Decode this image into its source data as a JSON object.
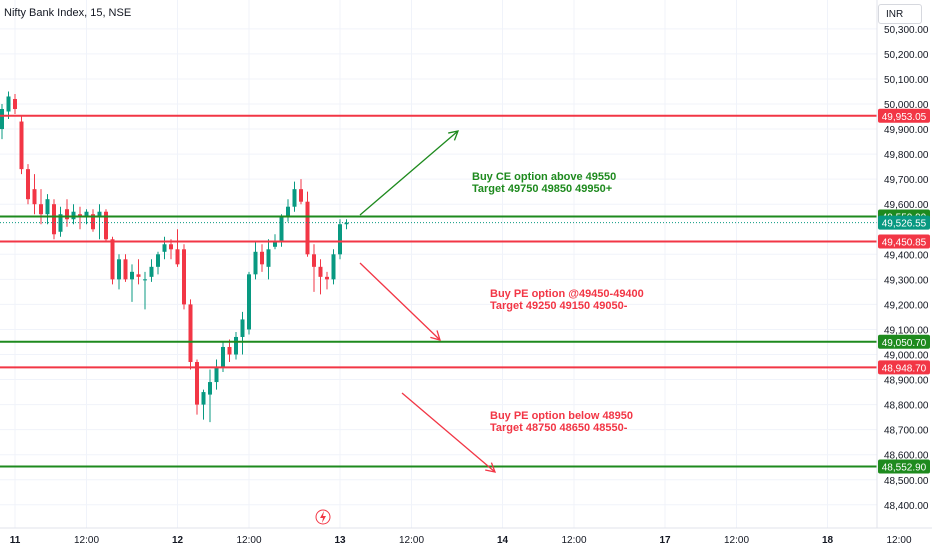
{
  "header": {
    "title": "Nifty Bank Index, 15, NSE",
    "currency": "INR"
  },
  "colors": {
    "up": "#089981",
    "down": "#f23645",
    "green_line": "#1e8a1e",
    "red_line": "#f23645",
    "grid": "#f0f3fa",
    "text": "#131722"
  },
  "chart_data": {
    "type": "candlestick",
    "title": "Nifty Bank Index, 15, NSE",
    "ylim": [
      48350,
      50350
    ],
    "y_ticks": [
      {
        "value": 50300,
        "label": "50,300.00"
      },
      {
        "value": 50200,
        "label": "50,200.00"
      },
      {
        "value": 50100,
        "label": "50,100.00"
      },
      {
        "value": 50000,
        "label": "50,000.00"
      },
      {
        "value": 49900,
        "label": "49,900.00"
      },
      {
        "value": 49800,
        "label": "49,800.00"
      },
      {
        "value": 49700,
        "label": "49,700.00"
      },
      {
        "value": 49600,
        "label": "49,600.00"
      },
      {
        "value": 49400,
        "label": "49,400.00"
      },
      {
        "value": 49300,
        "label": "49,300.00"
      },
      {
        "value": 49200,
        "label": "49,200.00"
      },
      {
        "value": 49100,
        "label": "49,100.00"
      },
      {
        "value": 49000,
        "label": "49,000.00"
      },
      {
        "value": 48900,
        "label": "48,900.00"
      },
      {
        "value": 48800,
        "label": "48,800.00"
      },
      {
        "value": 48700,
        "label": "48,700.00"
      },
      {
        "value": 48600,
        "label": "48,600.00"
      },
      {
        "value": 48500,
        "label": "48,500.00"
      },
      {
        "value": 48400,
        "label": "48,400.00"
      }
    ],
    "x_ticks": [
      {
        "index": 2,
        "label": "11"
      },
      {
        "index": 13,
        "label": "12:00"
      },
      {
        "index": 27,
        "label": "12"
      },
      {
        "index": 38,
        "label": "12:00"
      },
      {
        "index": 52,
        "label": "13"
      },
      {
        "index": 63,
        "label": "12:00"
      },
      {
        "index": 77,
        "label": "14"
      },
      {
        "index": 88,
        "label": "12:00"
      },
      {
        "index": 102,
        "label": "17"
      },
      {
        "index": 113,
        "label": "12:00"
      },
      {
        "index": 127,
        "label": "18"
      },
      {
        "index": 138,
        "label": "12:00"
      }
    ],
    "candles": [
      {
        "o": 49900,
        "h": 50000,
        "l": 49860,
        "c": 49980
      },
      {
        "o": 49970,
        "h": 50050,
        "l": 49940,
        "c": 50030
      },
      {
        "o": 50020,
        "h": 50040,
        "l": 49960,
        "c": 49980
      },
      {
        "o": 49930,
        "h": 49950,
        "l": 49720,
        "c": 49740
      },
      {
        "o": 49740,
        "h": 49760,
        "l": 49600,
        "c": 49620
      },
      {
        "o": 49660,
        "h": 49720,
        "l": 49560,
        "c": 49600
      },
      {
        "o": 49600,
        "h": 49660,
        "l": 49520,
        "c": 49560
      },
      {
        "o": 49560,
        "h": 49640,
        "l": 49520,
        "c": 49620
      },
      {
        "o": 49600,
        "h": 49620,
        "l": 49460,
        "c": 49480
      },
      {
        "o": 49490,
        "h": 49590,
        "l": 49470,
        "c": 49560
      },
      {
        "o": 49580,
        "h": 49620,
        "l": 49510,
        "c": 49540
      },
      {
        "o": 49540,
        "h": 49600,
        "l": 49520,
        "c": 49570
      },
      {
        "o": 49560,
        "h": 49590,
        "l": 49500,
        "c": 49550
      },
      {
        "o": 49550,
        "h": 49580,
        "l": 49520,
        "c": 49570
      },
      {
        "o": 49560,
        "h": 49580,
        "l": 49490,
        "c": 49500
      },
      {
        "o": 49550,
        "h": 49600,
        "l": 49460,
        "c": 49570
      },
      {
        "o": 49570,
        "h": 49580,
        "l": 49450,
        "c": 49460
      },
      {
        "o": 49460,
        "h": 49470,
        "l": 49280,
        "c": 49300
      },
      {
        "o": 49300,
        "h": 49400,
        "l": 49260,
        "c": 49380
      },
      {
        "o": 49380,
        "h": 49400,
        "l": 49290,
        "c": 49300
      },
      {
        "o": 49300,
        "h": 49360,
        "l": 49210,
        "c": 49330
      },
      {
        "o": 49320,
        "h": 49380,
        "l": 49280,
        "c": 49310
      },
      {
        "o": 49300,
        "h": 49330,
        "l": 49180,
        "c": 49300
      },
      {
        "o": 49310,
        "h": 49380,
        "l": 49290,
        "c": 49350
      },
      {
        "o": 49350,
        "h": 49410,
        "l": 49320,
        "c": 49400
      },
      {
        "o": 49410,
        "h": 49470,
        "l": 49380,
        "c": 49440
      },
      {
        "o": 49440,
        "h": 49460,
        "l": 49380,
        "c": 49420
      },
      {
        "o": 49420,
        "h": 49500,
        "l": 49350,
        "c": 49360
      },
      {
        "o": 49420,
        "h": 49440,
        "l": 49180,
        "c": 49200
      },
      {
        "o": 49200,
        "h": 49220,
        "l": 48940,
        "c": 48970
      },
      {
        "o": 48970,
        "h": 48980,
        "l": 48760,
        "c": 48800
      },
      {
        "o": 48800,
        "h": 48860,
        "l": 48740,
        "c": 48850
      },
      {
        "o": 48840,
        "h": 48940,
        "l": 48730,
        "c": 48890
      },
      {
        "o": 48890,
        "h": 48980,
        "l": 48860,
        "c": 48950
      },
      {
        "o": 48950,
        "h": 49050,
        "l": 48930,
        "c": 49030
      },
      {
        "o": 49030,
        "h": 49060,
        "l": 48970,
        "c": 49000
      },
      {
        "o": 49000,
        "h": 49090,
        "l": 48980,
        "c": 49070
      },
      {
        "o": 49070,
        "h": 49170,
        "l": 49000,
        "c": 49140
      },
      {
        "o": 49100,
        "h": 49330,
        "l": 49080,
        "c": 49320
      },
      {
        "o": 49320,
        "h": 49450,
        "l": 49300,
        "c": 49410
      },
      {
        "o": 49410,
        "h": 49440,
        "l": 49330,
        "c": 49360
      },
      {
        "o": 49350,
        "h": 49460,
        "l": 49300,
        "c": 49420
      },
      {
        "o": 49430,
        "h": 49480,
        "l": 49420,
        "c": 49450
      },
      {
        "o": 49450,
        "h": 49560,
        "l": 49430,
        "c": 49550
      },
      {
        "o": 49550,
        "h": 49620,
        "l": 49530,
        "c": 49590
      },
      {
        "o": 49590,
        "h": 49690,
        "l": 49570,
        "c": 49660
      },
      {
        "o": 49660,
        "h": 49700,
        "l": 49600,
        "c": 49610
      },
      {
        "o": 49610,
        "h": 49650,
        "l": 49390,
        "c": 49400
      },
      {
        "o": 49400,
        "h": 49440,
        "l": 49250,
        "c": 49350
      },
      {
        "o": 49350,
        "h": 49380,
        "l": 49240,
        "c": 49310
      },
      {
        "o": 49310,
        "h": 49330,
        "l": 49260,
        "c": 49300
      },
      {
        "o": 49300,
        "h": 49420,
        "l": 49280,
        "c": 49400
      },
      {
        "o": 49400,
        "h": 49540,
        "l": 49380,
        "c": 49520
      },
      {
        "o": 49520,
        "h": 49540,
        "l": 49500,
        "c": 49526
      }
    ],
    "horizontal_levels": [
      {
        "value": 49953.05,
        "label": "49,953.05",
        "color": "#f23645"
      },
      {
        "value": 49550.9,
        "label": "49,550.90",
        "color": "#1e8a1e"
      },
      {
        "value": 49526.55,
        "label": "49,526.55",
        "color": "#089981",
        "dotted": true
      },
      {
        "value": 49450.85,
        "label": "49,450.85",
        "color": "#f23645"
      },
      {
        "value": 49050.7,
        "label": "49,050.70",
        "color": "#1e8a1e"
      },
      {
        "value": 48948.7,
        "label": "48,948.70",
        "color": "#f23645"
      },
      {
        "value": 48552.9,
        "label": "48,552.90",
        "color": "#1e8a1e"
      }
    ],
    "annotations": [
      {
        "line1": "Buy CE option above 49550",
        "line2": "Target 49750 49850 49950+",
        "color": "#1e8a1e"
      },
      {
        "line1": "Buy PE option @49450-49400",
        "line2": "Target 49250 49150 49050-",
        "color": "#f23645"
      },
      {
        "line1": "Buy PE option below 48950",
        "line2": "Target 48750 48650 48550-",
        "color": "#f23645"
      }
    ],
    "grid": true
  }
}
